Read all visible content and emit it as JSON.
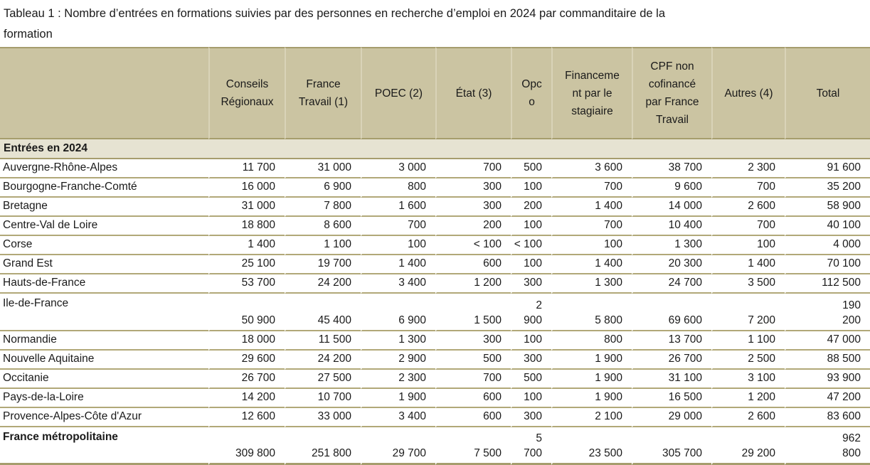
{
  "title": "Tableau 1 : Nombre d’entrées en formations suivies par des personnes en recherche d’emploi en 2024 par commanditaire de la\nformation",
  "colors": {
    "header_bg": "#cbc4a2",
    "section_bg": "#e6e3d2",
    "border_olive": "#a69d6d",
    "border_olive_light": "#b1a878",
    "header_separator": "#d9d3b8"
  },
  "table": {
    "section_header": "Entrées en 2024",
    "columns": [
      "",
      "Conseils\nRégionaux",
      "France\nTravail (1)",
      "POEC (2)",
      "État (3)",
      "Opc\no",
      "Financeme\nnt par le\nstagiaire",
      "CPF non\ncofinancé\npar France\nTravail",
      "Autres (4)",
      "Total"
    ],
    "rows": [
      {
        "label": "Auvergne-Rhône-Alpes",
        "two_line": false,
        "bold": false,
        "values": [
          "11 700",
          "31 000",
          "3 000",
          "700",
          "500",
          "3 600",
          "38 700",
          "2 300",
          "91 600"
        ]
      },
      {
        "label": "Bourgogne-Franche-Comté",
        "two_line": false,
        "bold": false,
        "values": [
          "16 000",
          "6 900",
          "800",
          "300",
          "100",
          "700",
          "9 600",
          "700",
          "35 200"
        ]
      },
      {
        "label": "Bretagne",
        "two_line": false,
        "bold": false,
        "values": [
          "31 000",
          "7 800",
          "1 600",
          "300",
          "200",
          "1 400",
          "14 000",
          "2 600",
          "58 900"
        ]
      },
      {
        "label": "Centre-Val de Loire",
        "two_line": false,
        "bold": false,
        "values": [
          "18 800",
          "8 600",
          "700",
          "200",
          "100",
          "700",
          "10 400",
          "700",
          "40 100"
        ]
      },
      {
        "label": "Corse",
        "two_line": false,
        "bold": false,
        "values": [
          "1 400",
          "1 100",
          "100",
          "< 100",
          "< 100",
          "100",
          "1 300",
          "100",
          "4 000"
        ]
      },
      {
        "label": "Grand Est",
        "two_line": false,
        "bold": false,
        "values": [
          "25 100",
          "19 700",
          "1 400",
          "600",
          "100",
          "1 400",
          "20 300",
          "1 400",
          "70 100"
        ]
      },
      {
        "label": "Hauts-de-France",
        "two_line": false,
        "bold": false,
        "values": [
          "53 700",
          "24 200",
          "3 400",
          "1 200",
          "300",
          "1 300",
          "24 700",
          "3 500",
          "112 500"
        ]
      },
      {
        "label": "Ile-de-France",
        "two_line": true,
        "bold": false,
        "values": [
          "50 900",
          "45 400",
          "6 900",
          "1 500",
          "2\n900",
          "5 800",
          "69 600",
          "7 200",
          "190\n200"
        ]
      },
      {
        "label": "Normandie",
        "two_line": false,
        "bold": false,
        "values": [
          "18 000",
          "11 500",
          "1 300",
          "300",
          "100",
          "800",
          "13 700",
          "1 100",
          "47 000"
        ]
      },
      {
        "label": "Nouvelle Aquitaine",
        "two_line": false,
        "bold": false,
        "values": [
          "29 600",
          "24 200",
          "2 900",
          "500",
          "300",
          "1 900",
          "26 700",
          "2 500",
          "88 500"
        ]
      },
      {
        "label": "Occitanie",
        "two_line": false,
        "bold": false,
        "values": [
          "26 700",
          "27 500",
          "2 300",
          "700",
          "500",
          "1 900",
          "31 100",
          "3 100",
          "93 900"
        ]
      },
      {
        "label": "Pays-de-la-Loire",
        "two_line": false,
        "bold": false,
        "values": [
          "14 200",
          "10 700",
          "1 900",
          "600",
          "100",
          "1 900",
          "16 500",
          "1 200",
          "47 200"
        ]
      },
      {
        "label": "Provence-Alpes-Côte d'Azur",
        "two_line": false,
        "bold": false,
        "values": [
          "12 600",
          "33 000",
          "3 400",
          "600",
          "300",
          "2 100",
          "29 000",
          "2 600",
          "83 600"
        ]
      },
      {
        "label": "France métropolitaine",
        "two_line": true,
        "bold": true,
        "values": [
          "309 800",
          "251 800",
          "29 700",
          "7 500",
          "5\n700",
          "23 500",
          "305 700",
          "29 200",
          "962\n800"
        ]
      }
    ]
  }
}
